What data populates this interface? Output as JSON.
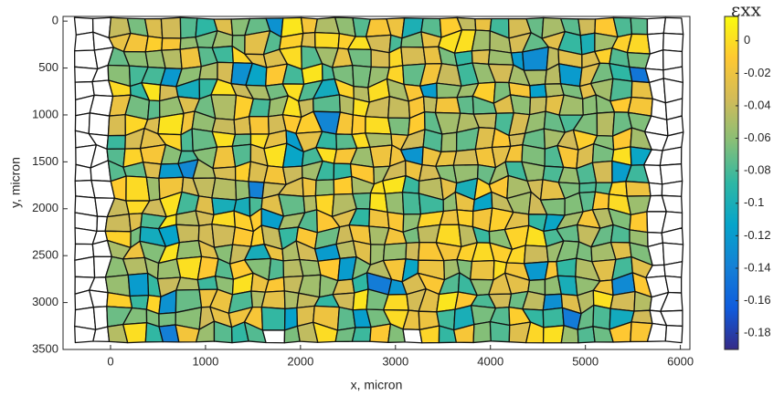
{
  "chart_data": {
    "type": "strain-map",
    "xlabel": "x, micron",
    "ylabel": "y, micron",
    "colorbar_label": "εxx",
    "xlim": [
      -500,
      6100
    ],
    "xticks": [
      0,
      1000,
      2000,
      3000,
      4000,
      5000,
      6000
    ],
    "ylim": [
      -50,
      3500
    ],
    "yticks": [
      0,
      500,
      1000,
      1500,
      2000,
      2500,
      3000,
      3500
    ],
    "y_reversed": true,
    "clim": [
      -0.19,
      0.015
    ],
    "cticks": [
      0,
      -0.02,
      -0.04,
      -0.06,
      -0.08,
      -0.1,
      -0.12,
      -0.14,
      -0.16,
      -0.18
    ],
    "colormap": [
      "#352a87",
      "#0f5cdd",
      "#1481d6",
      "#06a4ca",
      "#2eb7a4",
      "#87bf77",
      "#d1bb59",
      "#fec832",
      "#f9fb0e"
    ]
  }
}
